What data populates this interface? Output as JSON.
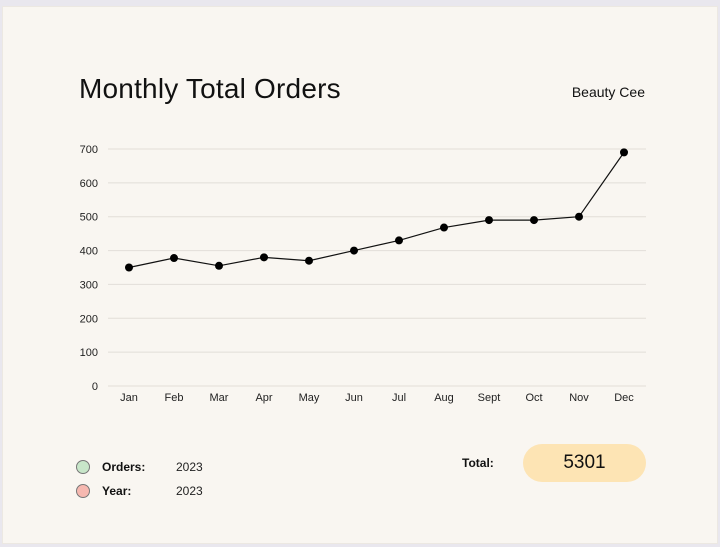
{
  "header": {
    "title": "Monthly Total Orders",
    "brand": "Beauty Cee"
  },
  "legend": [
    {
      "label": "Orders:",
      "value": "2023",
      "color": "#c8e6c9"
    },
    {
      "label": "Year:",
      "value": "2023",
      "color": "#f6b8b0"
    }
  ],
  "total": {
    "label": "Total:",
    "value": "5301"
  },
  "colors": {
    "line": "#111111",
    "grid": "#e2ded8",
    "pill": "#fde4b4"
  },
  "chart_data": {
    "type": "line",
    "categories": [
      "Jan",
      "Feb",
      "Mar",
      "Apr",
      "May",
      "Jun",
      "Jul",
      "Aug",
      "Sept",
      "Oct",
      "Nov",
      "Dec"
    ],
    "values": [
      350,
      378,
      355,
      380,
      370,
      400,
      430,
      468,
      490,
      490,
      500,
      690
    ],
    "ylim": [
      0,
      700
    ],
    "yticks": [
      0,
      100,
      200,
      300,
      400,
      500,
      600,
      700
    ],
    "grid": true,
    "title": "Monthly Total Orders"
  }
}
